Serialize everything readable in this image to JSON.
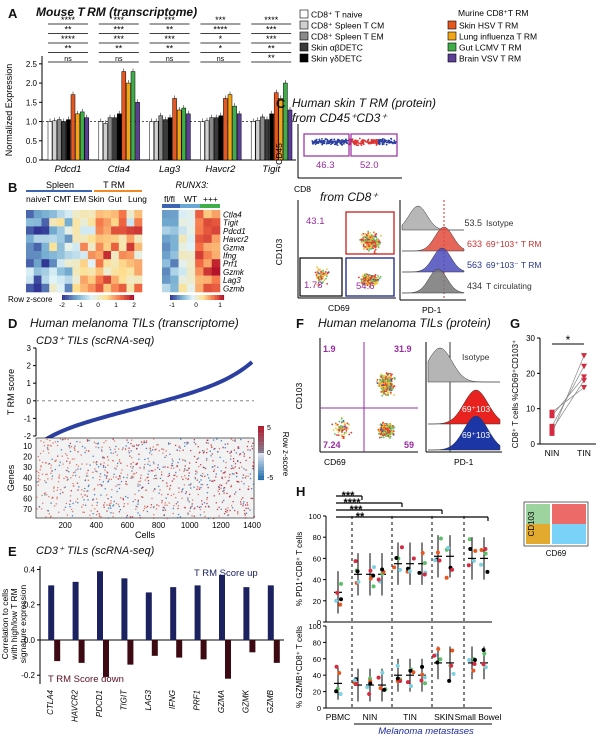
{
  "A": {
    "label": "A",
    "title": "Mouse T RM (transcriptome)",
    "ylabel": "Normalized Expression",
    "yticks": [
      "0.0",
      "0.5",
      "1.0",
      "1.5",
      "2.0",
      "2.5"
    ],
    "genes": [
      "Pdcd1",
      "Ctla4",
      "Lag3",
      "Havcr2",
      "Tigit"
    ],
    "legend_left": [
      "CD8⁺ T naive",
      "CD8⁺ Spleen T CM",
      "CD8⁺ Spleen T EM",
      "Skin αβDETC",
      "Skin γδDETC"
    ],
    "legend_right_title": "Murine CD8⁺T RM",
    "legend_right": [
      "Skin HSV T RM",
      "Lung influenza T RM",
      "Gut LCMV T RM",
      "Brain VSV T RM"
    ],
    "colors": [
      "#ffffff",
      "#d0d0d0",
      "#8a8a8a",
      "#3a3a3a",
      "#000000",
      "#e8561f",
      "#f2a516",
      "#3fae49",
      "#5b3f97"
    ],
    "chart_data": {
      "type": "bar",
      "categories": [
        "Pdcd1",
        "Ctla4",
        "Lag3",
        "Havcr2",
        "Tigit"
      ],
      "series": [
        {
          "name": "CD8+ T naive",
          "values": [
            1.0,
            1.0,
            1.0,
            1.0,
            1.0
          ]
        },
        {
          "name": "CD8+ Spleen TCM",
          "values": [
            1.02,
            0.95,
            1.0,
            1.02,
            1.03
          ]
        },
        {
          "name": "CD8+ Spleen TEM",
          "values": [
            1.05,
            1.1,
            1.15,
            1.1,
            1.12
          ]
        },
        {
          "name": "Skin abDETC",
          "values": [
            1.0,
            1.1,
            1.05,
            1.1,
            1.05
          ]
        },
        {
          "name": "Skin gdDETC",
          "values": [
            1.05,
            1.2,
            1.1,
            1.15,
            1.2
          ]
        },
        {
          "name": "Skin HSV TRM",
          "values": [
            1.7,
            2.3,
            1.6,
            1.6,
            1.75
          ]
        },
        {
          "name": "Lung influenza TRM",
          "values": [
            1.2,
            2.0,
            1.3,
            1.7,
            1.6
          ]
        },
        {
          "name": "Gut LCMV TRM",
          "values": [
            1.25,
            2.3,
            1.35,
            1.4,
            2.0
          ]
        },
        {
          "name": "Brain VSV TRM",
          "values": [
            1.1,
            1.5,
            1.2,
            1.2,
            1.3
          ]
        }
      ],
      "ylim": [
        0,
        2.6
      ]
    },
    "sig": [
      [
        "****",
        "**",
        "****",
        "**",
        "ns"
      ],
      [
        "***",
        "***",
        "***",
        "**",
        "ns"
      ],
      [
        "***",
        "**",
        "***",
        "**",
        "ns"
      ],
      [
        "***",
        "****",
        "*",
        "*",
        "ns"
      ],
      [
        "****",
        "***",
        "***",
        "**",
        "**"
      ]
    ]
  },
  "B": {
    "label": "B",
    "group1": "Spleen",
    "group2": "T RM",
    "cols1": [
      "naive",
      "T CM",
      "T EM",
      "Skin",
      "Gut",
      "Lung"
    ],
    "group3": "RUNX3:",
    "cols2": [
      "fl/fl",
      "WT",
      "+++"
    ],
    "rows": [
      "Ctla4",
      "Tigit",
      "Pdcd1",
      "Havcr2",
      "Gzma",
      "Ifng",
      "Prf1",
      "Gzmk",
      "Lag3",
      "Gzmb"
    ],
    "scale_label": "Row z-score",
    "scale1": [
      "-2",
      "-1",
      "0",
      "1",
      "2"
    ],
    "scale2": [
      "-1",
      "0",
      "1"
    ]
  },
  "C": {
    "label": "C",
    "title1": "Human skin T RM (protein)",
    "title2": "from CD45⁺CD3⁺",
    "from_cd8": "from CD8⁺",
    "g1": "46.3",
    "g2": "52.0",
    "q1": "43.1",
    "q2": "1.78",
    "q3": "54.6",
    "ylab1": "CD45",
    "xlab1": "CD8",
    "ylab2": "CD103",
    "xlab2": "CD69",
    "xlab3": "PD-1",
    "hist": [
      {
        "value": "53.5",
        "label": "Isotype"
      },
      {
        "value": "633",
        "label": "69⁺103⁺ T RM"
      },
      {
        "value": "563",
        "label": "69⁺103⁻ T RM"
      },
      {
        "value": "434",
        "label": "T circulating"
      }
    ]
  },
  "D": {
    "label": "D",
    "title": "Human melanoma TILs (transcriptome)",
    "subtitle": "CD3⁺ TILs (scRNA-seq)",
    "ylabel_top": "T RM score",
    "ylabel_bottom": "Genes",
    "xlabel": "Cells",
    "yticks_top": [
      "3",
      "2",
      "1",
      "0",
      "-1",
      "-2"
    ],
    "yticks_bottom": [
      "10",
      "20",
      "30",
      "40",
      "50",
      "60",
      "70"
    ],
    "xticks": [
      "200",
      "400",
      "600",
      "800",
      "1000",
      "1200",
      "1400"
    ],
    "scale_label": "Row z-score",
    "scale": [
      "5",
      "0",
      "-5"
    ]
  },
  "E": {
    "label": "E",
    "subtitle": "CD3⁺ TILs (scRNA-seq)",
    "ylabel": "Correlation to cells with high/low T RM signature expression",
    "up": "T RM Score up",
    "down": "T RM Score down",
    "yticks": [
      "0.4",
      "0.2",
      "0.0",
      "-0.2"
    ],
    "chart_data": {
      "type": "bar",
      "categories": [
        "CTLA4",
        "HAVCR2",
        "PDCD1",
        "TIGIT",
        "LAG3",
        "IFNG",
        "PRF1",
        "GZMA",
        "GZMK",
        "GZMB"
      ],
      "series": [
        {
          "name": "TRM Score up",
          "values": [
            0.31,
            0.33,
            0.39,
            0.35,
            0.27,
            0.3,
            0.31,
            0.37,
            0.3,
            0.31
          ]
        },
        {
          "name": "TRM Score down",
          "values": [
            -0.12,
            -0.13,
            -0.21,
            -0.14,
            -0.09,
            -0.1,
            -0.11,
            -0.22,
            -0.07,
            -0.13
          ]
        }
      ],
      "ylim": [
        -0.25,
        0.42
      ]
    }
  },
  "F": {
    "label": "F",
    "title": "Human melanoma TILs (protein)",
    "q_tl": "1.9",
    "q_tr": "31.9",
    "q_bl": "7.24",
    "q_br": "59",
    "ylab": "CD103",
    "xlab1": "CD69",
    "xlab2": "PD-1",
    "hist": [
      "Isotype",
      "69⁺103⁺ T RM",
      "69⁺103⁻ T RM"
    ]
  },
  "G": {
    "label": "G",
    "ylabel": "CD8⁺ T cells %CD69⁺CD103⁺",
    "yticks": [
      "0",
      "10",
      "20",
      "30"
    ],
    "sig": "*",
    "chart_data": {
      "type": "scatter",
      "categories": [
        "NIN",
        "TIN"
      ],
      "pairs": [
        [
          3,
          25
        ],
        [
          5,
          22
        ],
        [
          4,
          18
        ],
        [
          8,
          19
        ],
        [
          9,
          16
        ]
      ],
      "ylim": [
        0,
        30
      ]
    }
  },
  "H": {
    "label": "H",
    "ylabel_top": "% PD1⁺CD8⁺ T cells",
    "ylabel_bottom": "% GZMB⁺CD8⁺ T cells",
    "yticks": [
      "0",
      "20",
      "40",
      "60",
      "80",
      "100"
    ],
    "sig": [
      "***",
      "****",
      "***",
      "**"
    ],
    "groups": [
      "PBMC",
      "NIN",
      "TIN",
      "SKIN",
      "Small Bowel"
    ],
    "metastases": "Melanoma metastases",
    "inset_y": "CD103",
    "inset_x": "CD69"
  }
}
